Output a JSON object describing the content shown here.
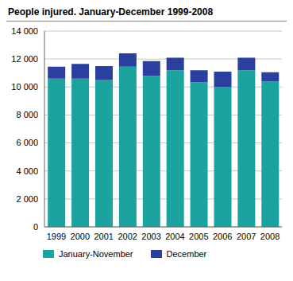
{
  "chart_data": {
    "type": "bar",
    "title": "People injured. January-December 1999-2008",
    "categories": [
      "1999",
      "2000",
      "2001",
      "2002",
      "2003",
      "2004",
      "2005",
      "2006",
      "2007",
      "2008"
    ],
    "series": [
      {
        "name": "January-November",
        "color": "#1ba3a0",
        "values": [
          10600,
          10600,
          10500,
          11450,
          10800,
          11200,
          10350,
          10000,
          11200,
          10400
        ]
      },
      {
        "name": "December",
        "color": "#2b3f9e",
        "values": [
          850,
          1050,
          1000,
          950,
          1050,
          900,
          850,
          1100,
          900,
          650
        ]
      }
    ],
    "stacked": true,
    "grid": true,
    "ylim": [
      0,
      14000
    ],
    "yticks": [
      0,
      {
        "value": 2000,
        "label": "2 000"
      },
      {
        "value": 4000,
        "label": "4 000"
      },
      {
        "value": 6000,
        "label": "6 000"
      },
      {
        "value": 8000,
        "label": "8 000"
      },
      {
        "value": 10000,
        "label": "10 000"
      },
      {
        "value": 12000,
        "label": "12 000"
      },
      {
        "value": 14000,
        "label": "14 000"
      }
    ]
  }
}
